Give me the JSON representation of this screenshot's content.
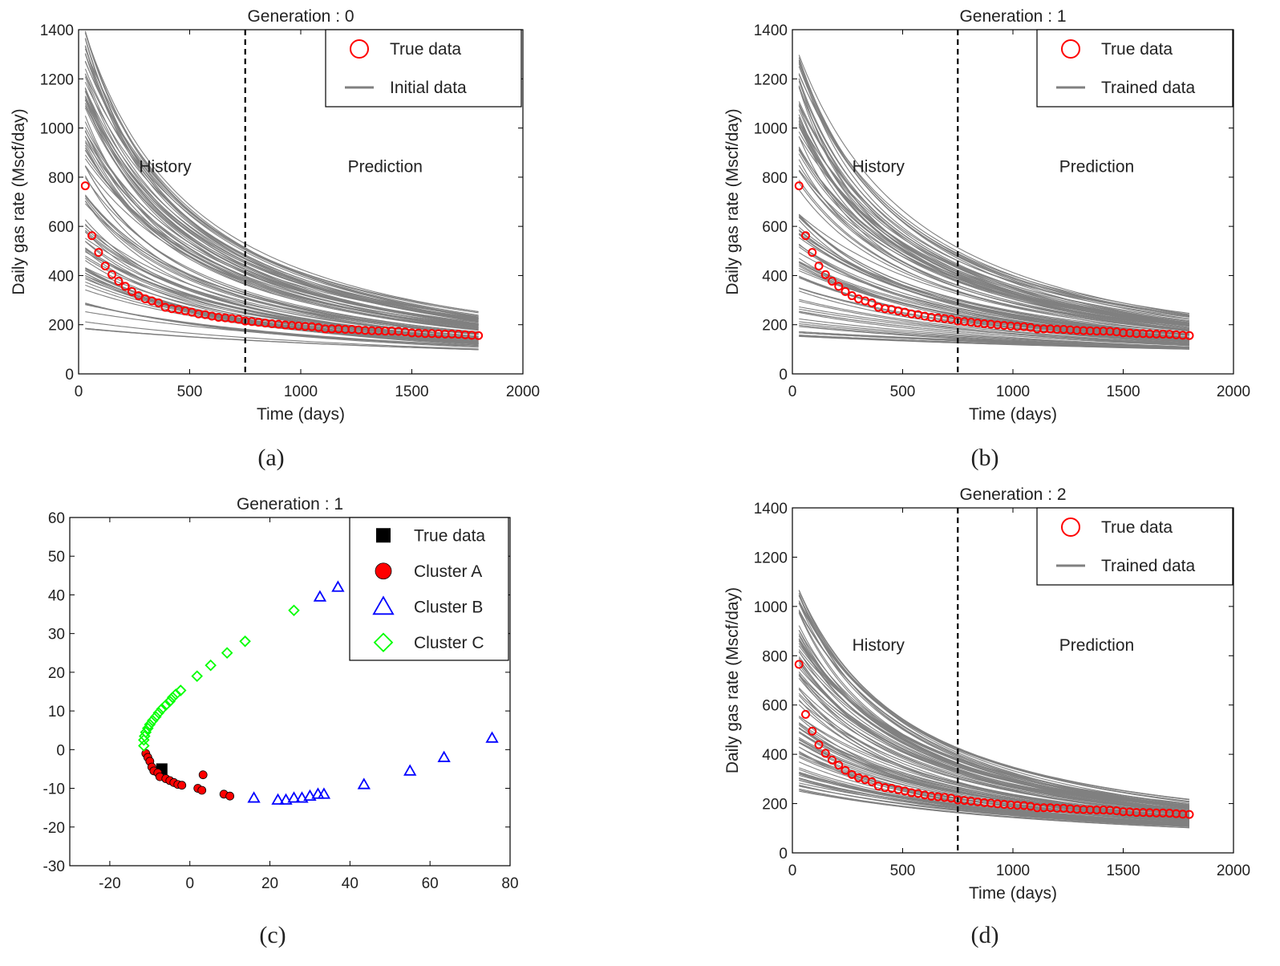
{
  "figure": {
    "panel_labels": [
      "(a)",
      "(b)",
      "(c)",
      "(d)"
    ]
  },
  "chart_data": [
    {
      "panel": "(a)",
      "type": "line",
      "title": "Generation : 0",
      "xlabel": "Time (days)",
      "ylabel": "Daily gas rate (Mscf/day)",
      "xlim": [
        0,
        2000
      ],
      "ylim": [
        0,
        1400
      ],
      "xticks": [
        0,
        500,
        1000,
        1500,
        2000
      ],
      "yticks": [
        0,
        200,
        400,
        600,
        800,
        1000,
        1200,
        1400
      ],
      "grid": false,
      "legend_position": "top-right",
      "history_prediction_split_x": 750,
      "region_labels": [
        "History",
        "Prediction"
      ],
      "series": [
        {
          "name": "True data",
          "marker": "circle-open",
          "color": "#ff0000",
          "x": [
            30,
            60,
            90,
            120,
            150,
            180,
            210,
            240,
            270,
            300,
            330,
            360,
            390,
            420,
            450,
            480,
            510,
            540,
            570,
            600,
            630,
            660,
            690,
            720,
            750,
            780,
            810,
            840,
            870,
            900,
            930,
            960,
            990,
            1020,
            1050,
            1080,
            1110,
            1140,
            1170,
            1200,
            1230,
            1260,
            1290,
            1320,
            1350,
            1380,
            1410,
            1440,
            1470,
            1500,
            1530,
            1560,
            1590,
            1620,
            1650,
            1680,
            1710,
            1740,
            1770,
            1800
          ],
          "y": [
            765,
            562,
            494,
            439,
            404,
            377,
            356,
            335,
            318,
            305,
            297,
            289,
            271,
            265,
            262,
            256,
            251,
            244,
            241,
            235,
            230,
            228,
            225,
            222,
            215,
            213,
            210,
            207,
            204,
            202,
            199,
            197,
            195,
            193,
            192,
            189,
            183,
            183,
            183,
            181,
            181,
            179,
            177,
            176,
            175,
            174,
            174,
            173,
            171,
            167,
            166,
            164,
            164,
            163,
            162,
            162,
            161,
            159,
            157,
            156
          ]
        },
        {
          "name": "Initial data",
          "style": "ensemble-lines",
          "color": "#808080",
          "members": 100,
          "x_range": [
            30,
            1800
          ],
          "y_start_range": [
            180,
            1400
          ],
          "y_end_range": [
            75,
            240
          ]
        }
      ]
    },
    {
      "panel": "(b)",
      "type": "line",
      "title": "Generation : 1",
      "xlabel": "Time (days)",
      "ylabel": "Daily gas rate (Mscf/day)",
      "xlim": [
        0,
        2000
      ],
      "ylim": [
        0,
        1400
      ],
      "xticks": [
        0,
        500,
        1000,
        1500,
        2000
      ],
      "yticks": [
        0,
        200,
        400,
        600,
        800,
        1000,
        1200,
        1400
      ],
      "grid": false,
      "legend_position": "top-right",
      "history_prediction_split_x": 750,
      "region_labels": [
        "History",
        "Prediction"
      ],
      "series": [
        {
          "name": "True data",
          "marker": "circle-open",
          "color": "#ff0000",
          "same_as_panel": "(a)"
        },
        {
          "name": "Trained data",
          "style": "ensemble-lines",
          "color": "#808080",
          "members": 100,
          "x_range": [
            30,
            1800
          ],
          "y_start_range": [
            150,
            1300
          ],
          "y_end_range": [
            80,
            230
          ]
        }
      ]
    },
    {
      "panel": "(c)",
      "type": "scatter",
      "title": "Generation : 1",
      "xlabel": "",
      "ylabel": "",
      "xlim": [
        -30,
        80
      ],
      "ylim": [
        -30,
        60
      ],
      "xticks": [
        -20,
        0,
        20,
        40,
        60,
        80
      ],
      "yticks": [
        -30,
        -20,
        -10,
        0,
        10,
        20,
        30,
        40,
        50,
        60
      ],
      "grid": false,
      "legend_position": "top-right",
      "series": [
        {
          "name": "True data",
          "marker": "square-filled",
          "color": "#000000",
          "points": [
            [
              -7,
              -5
            ]
          ]
        },
        {
          "name": "Cluster A",
          "marker": "circle-filled",
          "color": "#ff0000",
          "points": [
            [
              -11,
              -1
            ],
            [
              -10.5,
              -2
            ],
            [
              -10,
              -3
            ],
            [
              -9.5,
              -4.5
            ],
            [
              -9,
              -5.5
            ],
            [
              -8,
              -6
            ],
            [
              -7.5,
              -7
            ],
            [
              -6,
              -7.5
            ],
            [
              -5,
              -8
            ],
            [
              -4,
              -8.5
            ],
            [
              -3,
              -9
            ],
            [
              -2,
              -9.2
            ],
            [
              2,
              -10
            ],
            [
              3,
              -10.5
            ],
            [
              3.3,
              -6.5
            ],
            [
              8.5,
              -11.5
            ],
            [
              10,
              -12
            ]
          ]
        },
        {
          "name": "Cluster B",
          "marker": "triangle-open",
          "color": "#0000ff",
          "points": [
            [
              16,
              -12.5
            ],
            [
              22,
              -13
            ],
            [
              24,
              -13
            ],
            [
              26,
              -12.5
            ],
            [
              28,
              -12.5
            ],
            [
              30,
              -12
            ],
            [
              32,
              -11.5
            ],
            [
              33.5,
              -11.5
            ],
            [
              43.5,
              -9
            ],
            [
              55,
              -5.5
            ],
            [
              63.5,
              -2
            ],
            [
              75.5,
              3
            ],
            [
              32.5,
              39.5
            ],
            [
              37,
              42
            ]
          ]
        },
        {
          "name": "Cluster C",
          "marker": "diamond-open",
          "color": "#00ff00",
          "points": [
            [
              -11.5,
              1
            ],
            [
              -11.5,
              2.5
            ],
            [
              -11.3,
              3.5
            ],
            [
              -11,
              4.5
            ],
            [
              -10.5,
              5.5
            ],
            [
              -10,
              6.5
            ],
            [
              -9.3,
              7.5
            ],
            [
              -8.5,
              8.5
            ],
            [
              -7.8,
              9.5
            ],
            [
              -7,
              10.5
            ],
            [
              -6,
              11.5
            ],
            [
              -5,
              12.5
            ],
            [
              -4.3,
              13.5
            ],
            [
              -3.5,
              14.3
            ],
            [
              -2.3,
              15.3
            ],
            [
              1.8,
              19
            ],
            [
              5.2,
              21.8
            ],
            [
              9.3,
              25
            ],
            [
              13.8,
              28
            ],
            [
              26,
              36
            ]
          ]
        }
      ]
    },
    {
      "panel": "(d)",
      "type": "line",
      "title": "Generation : 2",
      "xlabel": "Time (days)",
      "ylabel": "Daily gas rate (Mscf/day)",
      "xlim": [
        0,
        2000
      ],
      "ylim": [
        0,
        1400
      ],
      "xticks": [
        0,
        500,
        1000,
        1500,
        2000
      ],
      "yticks": [
        0,
        200,
        400,
        600,
        800,
        1000,
        1200,
        1400
      ],
      "grid": false,
      "legend_position": "top-right",
      "history_prediction_split_x": 750,
      "region_labels": [
        "History",
        "Prediction"
      ],
      "series": [
        {
          "name": "True data",
          "marker": "circle-open",
          "color": "#ff0000",
          "same_as_panel": "(a)"
        },
        {
          "name": "Trained data",
          "style": "ensemble-lines",
          "color": "#808080",
          "members": 100,
          "x_range": [
            30,
            1800
          ],
          "y_start_range": [
            250,
            1130
          ],
          "y_end_range": [
            85,
            215
          ]
        }
      ]
    }
  ]
}
